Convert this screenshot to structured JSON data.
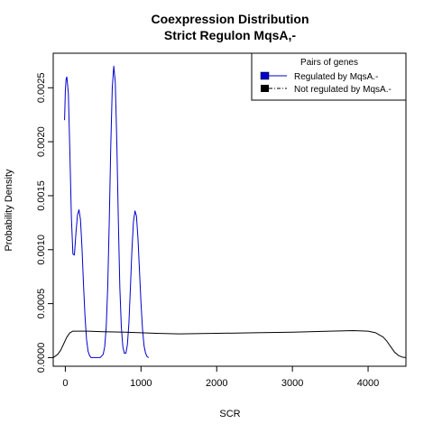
{
  "chart_data": {
    "type": "line",
    "title": "Coexpression Distribution",
    "subtitle": "Strict Regulon MqsA,-",
    "xlabel": "SCR",
    "ylabel": "Probability Density",
    "xlim": [
      -160,
      4500
    ],
    "ylim": [
      -8e-05,
      0.00282
    ],
    "xticks": [
      "0",
      "1000",
      "2000",
      "3000",
      "4000"
    ],
    "xtick_values": [
      0,
      1000,
      2000,
      3000,
      4000
    ],
    "yticks": [
      "0.0000",
      "0.0005",
      "0.0010",
      "0.0015",
      "0.0020",
      "0.0025"
    ],
    "ytick_values": [
      0,
      0.0005,
      0.001,
      0.0015,
      0.002,
      0.0025
    ],
    "grid": false,
    "legend": {
      "title": "Pairs of genes",
      "position": "top-right",
      "entries": [
        {
          "label": "Regulated by  MqsA.-",
          "color": "#0000cc",
          "line": "solid"
        },
        {
          "label": "Not regulated by  MqsA.-",
          "color": "#000000",
          "line": "dashdot"
        }
      ]
    },
    "series": [
      {
        "name": "Regulated by  MqsA.-",
        "color": "#0000cc",
        "x": [
          -10,
          0,
          10,
          20,
          40,
          60,
          80,
          100,
          120,
          140,
          160,
          180,
          200,
          220,
          240,
          260,
          280,
          300,
          320,
          340,
          380,
          420,
          460,
          500,
          520,
          540,
          560,
          580,
          600,
          620,
          640,
          660,
          680,
          700,
          720,
          740,
          760,
          780,
          800,
          820,
          840,
          860,
          880,
          900,
          920,
          940,
          960,
          980,
          1000,
          1020,
          1040,
          1060,
          1080,
          1100
        ],
        "y": [
          0.0022,
          0.00247,
          0.00258,
          0.0026,
          0.00245,
          0.0019,
          0.0013,
          0.00096,
          0.00095,
          0.00115,
          0.00132,
          0.00137,
          0.00128,
          0.00102,
          0.00068,
          0.00038,
          0.00017,
          6e-05,
          2e-05,
          0.0,
          0.0,
          0.0,
          0.0,
          3e-05,
          0.0001,
          0.00028,
          0.00065,
          0.00125,
          0.00195,
          0.0025,
          0.0027,
          0.00255,
          0.002,
          0.00128,
          0.00065,
          0.00028,
          0.0001,
          4e-05,
          4e-05,
          0.00012,
          0.00032,
          0.00065,
          0.001,
          0.00126,
          0.00136,
          0.00131,
          0.0011,
          0.0008,
          0.0005,
          0.00026,
          0.00011,
          4e-05,
          1e-05,
          0.0
        ]
      },
      {
        "name": "Not regulated by  MqsA.-",
        "color": "#000000",
        "x": [
          -160,
          -100,
          -60,
          -20,
          20,
          60,
          100,
          150,
          200,
          300,
          500,
          800,
          1000,
          1200,
          1500,
          2000,
          2500,
          3000,
          3500,
          3800,
          4000,
          4100,
          4200,
          4250,
          4300,
          4350,
          4400,
          4450,
          4500
        ],
        "y": [
          0.0,
          3e-05,
          7e-05,
          0.00013,
          0.00019,
          0.00023,
          0.000245,
          0.000245,
          0.000245,
          0.000245,
          0.00024,
          0.000235,
          0.00023,
          0.000225,
          0.00022,
          0.000225,
          0.00023,
          0.000235,
          0.000245,
          0.00025,
          0.000245,
          0.00023,
          0.00019,
          0.00015,
          0.0001,
          5e-05,
          2e-05,
          5e-06,
          0.0
        ]
      }
    ]
  }
}
